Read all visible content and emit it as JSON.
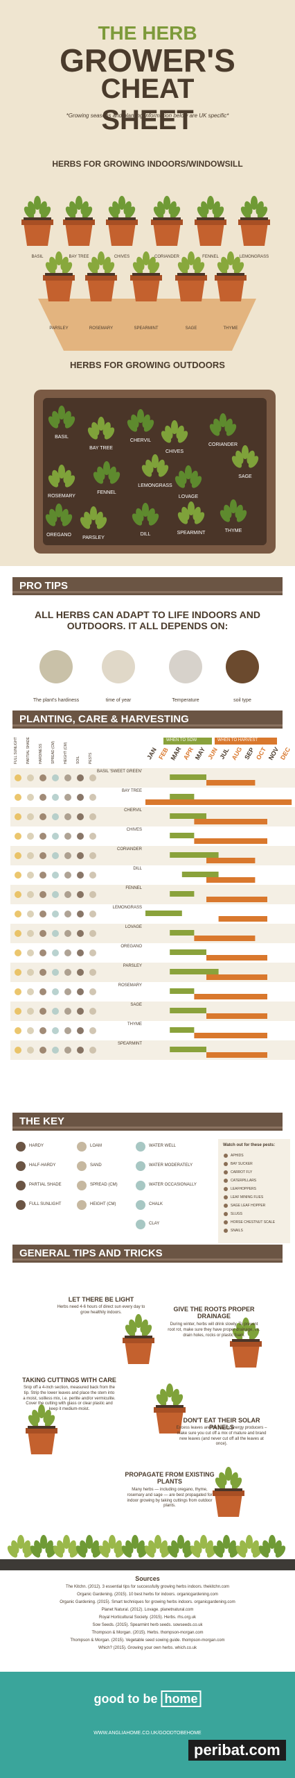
{
  "header": {
    "line1": "THE HERB",
    "line2": "GROWER'S",
    "line3": "CHEAT SHEET",
    "subtitle": "*Growing seasons and planting information below are UK specific*"
  },
  "indoor": {
    "title": "HERBS FOR GROWING INDOORS/WINDOWSILL",
    "row1": [
      "BASIL",
      "BAY TREE",
      "CHIVES",
      "CORIANDER",
      "FENNEL",
      "LEMONGRASS"
    ],
    "row2": [
      "PARSLEY",
      "ROSEMARY",
      "SPEARMINT",
      "SAGE",
      "THYME"
    ]
  },
  "outdoor": {
    "title": "HERBS FOR GROWING OUTDOORS",
    "labels": [
      "BASIL",
      "BAY TREE",
      "CHERVIL",
      "CHIVES",
      "CORIANDER",
      "ROSEMARY",
      "FENNEL",
      "LEMONGRASS",
      "LOVAGE",
      "SAGE",
      "OREGANO",
      "PARSLEY",
      "DILL",
      "SPEARMINT",
      "THYME"
    ]
  },
  "pro_tips": {
    "heading": "PRO TIPS",
    "intro": "ALL HERBS CAN ADAPT TO LIFE INDOORS AND OUTDOORS. IT ALL DEPENDS ON:",
    "factors": [
      "The plant's hardiness",
      "time of year",
      "Temperature",
      "soil type"
    ]
  },
  "planting": {
    "heading": "PLANTING, CARE & HARVESTING",
    "legend_sow": "WHEN TO SOW",
    "legend_harvest": "WHEN TO HARVEST",
    "columns": [
      "FULL SUNLIGHT",
      "PARTIAL SHADE",
      "HARDINESS",
      "SPREAD (CM)",
      "HEIGHT (CM)",
      "SOIL",
      "PESTS"
    ],
    "months": [
      "JAN",
      "FEB",
      "MAR",
      "APR",
      "MAY",
      "JUN",
      "JUL",
      "AUG",
      "SEP",
      "OCT",
      "NOV",
      "DEC"
    ],
    "rows": [
      {
        "name": "BASIL 'SWEET GREEN'",
        "sow": [
          3,
          5
        ],
        "harvest": [
          6,
          9
        ]
      },
      {
        "name": "BAY TREE",
        "sow": [
          3,
          4
        ],
        "harvest": [
          1,
          12
        ]
      },
      {
        "name": "CHERVIL",
        "sow": [
          3,
          5
        ],
        "harvest": [
          5,
          10
        ]
      },
      {
        "name": "CHIVES",
        "sow": [
          3,
          4
        ],
        "harvest": [
          5,
          10
        ]
      },
      {
        "name": "CORIANDER",
        "sow": [
          3,
          6
        ],
        "harvest": [
          6,
          9
        ]
      },
      {
        "name": "DILL",
        "sow": [
          4,
          6
        ],
        "harvest": [
          6,
          9
        ]
      },
      {
        "name": "FENNEL",
        "sow": [
          3,
          4
        ],
        "harvest": [
          6,
          10
        ]
      },
      {
        "name": "LEMONGRASS",
        "sow": [
          1,
          3
        ],
        "harvest": [
          7,
          10
        ]
      },
      {
        "name": "LOVAGE",
        "sow": [
          3,
          4
        ],
        "harvest": [
          5,
          9
        ]
      },
      {
        "name": "OREGANO",
        "sow": [
          3,
          5
        ],
        "harvest": [
          6,
          10
        ]
      },
      {
        "name": "PARSLEY",
        "sow": [
          3,
          6
        ],
        "harvest": [
          6,
          10
        ]
      },
      {
        "name": "ROSEMARY",
        "sow": [
          3,
          4
        ],
        "harvest": [
          5,
          10
        ]
      },
      {
        "name": "SAGE",
        "sow": [
          3,
          5
        ],
        "harvest": [
          6,
          10
        ]
      },
      {
        "name": "THYME",
        "sow": [
          3,
          4
        ],
        "harvest": [
          5,
          10
        ]
      },
      {
        "name": "SPEARMINT",
        "sow": [
          3,
          5
        ],
        "harvest": [
          6,
          10
        ]
      }
    ]
  },
  "key": {
    "heading": "THE KEY",
    "items": [
      [
        "HARDY",
        "HALF-HARDY",
        "PARTIAL SHADE",
        "FULL SUNLIGHT"
      ],
      [
        "LOAM",
        "SAND",
        "SPREAD (CM)",
        "HEIGHT (CM)"
      ],
      [
        "WATER WELL",
        "WATER MODERATELY",
        "WATER OCCASIONALLY",
        "CHALK",
        "CLAY"
      ]
    ],
    "pests_title": "Watch out for these pests:",
    "pests": [
      "APHIDS",
      "BAY SUCKER",
      "CARROT FLY",
      "CATERPILLARS",
      "LEAFHOPPERS",
      "LEAF MINING FLIES",
      "SAGE LEAF HOPPER",
      "SLUGS",
      "HORSE CHESTNUT SCALE",
      "SNAILS"
    ]
  },
  "tips": {
    "heading": "GENERAL TIPS AND TRICKS",
    "items": [
      {
        "title": "LET THERE BE LIGHT",
        "text": "Herbs need 4-6 hours of direct sun every day to grow healthily indoors."
      },
      {
        "title": "GIVE THE ROOTS PROPER DRAINAGE",
        "text": "During winter, herbs will drink slowly. To prevent root rot, make sure they have proper drainage, i.e. drain holes, rocks or plastic foam."
      },
      {
        "title": "TAKING CUTTINGS WITH CARE",
        "text": "Snip off a 4-inch section, measured back from the tip. Strip the lower leaves and place the stem into a moist, soilless mix, i.e. perlite and/or vermiculite. Cover the cutting with glass or clear plastic and keep it medium-moist."
      },
      {
        "title": "DON'T EAT THEIR SOLAR PANELS",
        "text": "Excess leaves are the plant's energy producers – make sure you cut off a mix of mature and brand new leaves (and never cut off all the leaves at once)."
      },
      {
        "title": "PROPAGATE FROM EXISTING PLANTS",
        "text": "Many herbs — including oregano, thyme, rosemary and sage — are best propagated for indoor growing by taking cuttings from outdoor plants."
      }
    ]
  },
  "sources": {
    "title": "Sources",
    "items": [
      "The Kitchn. (2012). 3 essential tips for successfully growing herbs indoors. thekitchn.com",
      "Organic Gardening. (2015). 10 best herbs for indoors. organicgardening.com",
      "Organic Gardening. (2015). Smart techniques for growing herbs indoors. organicgardening.com",
      "Planet Natural. (2012). Lovage. planetnatural.com",
      "Royal Horticultural Society. (2015). Herbs. rhs.org.uk",
      "Sow Seeds. (2015). Spearmint herb seeds. sowseeds.co.uk",
      "Thompson & Morgan. (2015). Herbs. thompson-morgan.com",
      "Thompson & Morgan. (2015). Vegetable seed sowing guide. thompson-morgan.com",
      "Which? (2015). Growing your own herbs. which.co.uk"
    ]
  },
  "footer": {
    "logo": [
      "good to be",
      "home"
    ],
    "url": "WWW.ANGLIAHOME.CO.UK/GOODTOBEHOME",
    "watermark": "peribat.com"
  }
}
